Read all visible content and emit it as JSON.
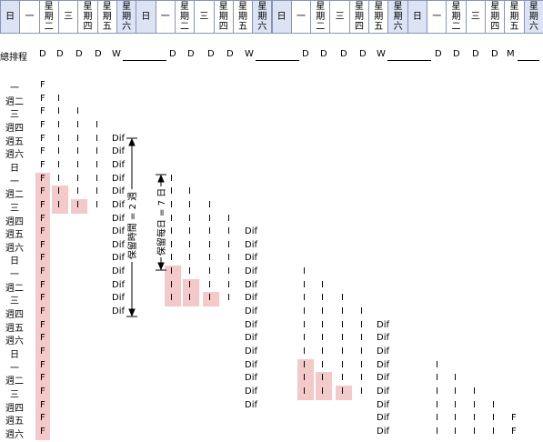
{
  "header": {
    "days": [
      "日",
      "一",
      "星期二",
      "三",
      "星期四",
      "星期五",
      "星期六",
      "日",
      "一",
      "星期二",
      "三",
      "星期四",
      "星期五",
      "星期六",
      "日",
      "一",
      "星期二",
      "三",
      "星期四",
      "星期五",
      "星期六",
      "日",
      "一",
      "星期二",
      "三",
      "星期四",
      "星期五",
      "星期六"
    ]
  },
  "schedule": {
    "label": "總排程",
    "items": [
      "D",
      "D",
      "D",
      "D",
      "W",
      "D",
      "D",
      "D",
      "D",
      "W",
      "D",
      "D",
      "D",
      "D",
      "W",
      "D",
      "D",
      "D",
      "D",
      "M"
    ]
  },
  "annotations": [
    "保留時間 = 2 週",
    "保留每日 = 7 日"
  ],
  "rows": [
    {
      "label": "一",
      "cells": [
        "F",
        null,
        null,
        null,
        null,
        null,
        null,
        null,
        null,
        null,
        null,
        null,
        null,
        null,
        null,
        null,
        null,
        null,
        null,
        null
      ]
    },
    {
      "label": "週二",
      "cells": [
        "F",
        "I",
        null,
        null,
        null,
        null,
        null,
        null,
        null,
        null,
        null,
        null,
        null,
        null,
        null,
        null,
        null,
        null,
        null,
        null
      ]
    },
    {
      "label": "三",
      "cells": [
        "F",
        "I",
        "I",
        null,
        null,
        null,
        null,
        null,
        null,
        null,
        null,
        null,
        null,
        null,
        null,
        null,
        null,
        null,
        null,
        null
      ]
    },
    {
      "label": "週四",
      "cells": [
        "F",
        "I",
        "I",
        "I",
        null,
        null,
        null,
        null,
        null,
        null,
        null,
        null,
        null,
        null,
        null,
        null,
        null,
        null,
        null,
        null
      ]
    },
    {
      "label": "週五",
      "cells": [
        "F",
        "I",
        "I",
        "I",
        "Dif",
        null,
        null,
        null,
        null,
        null,
        null,
        null,
        null,
        null,
        null,
        null,
        null,
        null,
        null,
        null
      ]
    },
    {
      "label": "週六",
      "cells": [
        "F",
        "I",
        "I",
        "I",
        "Dif",
        null,
        null,
        null,
        null,
        null,
        null,
        null,
        null,
        null,
        null,
        null,
        null,
        null,
        null,
        null
      ]
    },
    {
      "label": "日",
      "cells": [
        "F",
        "I",
        "I",
        "I",
        "Dif",
        null,
        null,
        null,
        null,
        null,
        null,
        null,
        null,
        null,
        null,
        null,
        null,
        null,
        null,
        null
      ]
    },
    {
      "label": "一",
      "cells": [
        "F",
        "I",
        "I",
        "I",
        "Dif",
        "I",
        null,
        null,
        null,
        null,
        null,
        null,
        null,
        null,
        null,
        null,
        null,
        null,
        null,
        null
      ]
    },
    {
      "label": "週二",
      "cells": [
        "F",
        "I",
        "I",
        "I",
        "Dif",
        "I",
        "I",
        null,
        null,
        null,
        null,
        null,
        null,
        null,
        null,
        null,
        null,
        null,
        null,
        null
      ]
    },
    {
      "label": "三",
      "cells": [
        "F",
        "I",
        "I",
        "I",
        "Dif",
        "I",
        "I",
        "I",
        null,
        null,
        null,
        null,
        null,
        null,
        null,
        null,
        null,
        null,
        null,
        null
      ]
    },
    {
      "label": "週四",
      "cells": [
        "F",
        null,
        null,
        null,
        "Dif",
        "I",
        "I",
        "I",
        "I",
        null,
        null,
        null,
        null,
        null,
        null,
        null,
        null,
        null,
        null,
        null
      ]
    },
    {
      "label": "週五",
      "cells": [
        "F",
        null,
        null,
        null,
        "Dif",
        "I",
        "I",
        "I",
        "I",
        "Dif",
        null,
        null,
        null,
        null,
        null,
        null,
        null,
        null,
        null,
        null
      ]
    },
    {
      "label": "週六",
      "cells": [
        "F",
        null,
        null,
        null,
        "Dif",
        "I",
        "I",
        "I",
        "I",
        "Dif",
        null,
        null,
        null,
        null,
        null,
        null,
        null,
        null,
        null,
        null
      ]
    },
    {
      "label": "日",
      "cells": [
        "F",
        null,
        null,
        null,
        "Dif",
        "I",
        "I",
        "I",
        "I",
        "Dif",
        null,
        null,
        null,
        null,
        null,
        null,
        null,
        null,
        null,
        null
      ]
    },
    {
      "label": "一",
      "cells": [
        "F",
        null,
        null,
        null,
        "Dif",
        "I",
        "I",
        "I",
        "I",
        "Dif",
        "I",
        null,
        null,
        null,
        null,
        null,
        null,
        null,
        null,
        null
      ]
    },
    {
      "label": "週二",
      "cells": [
        "F",
        null,
        null,
        null,
        "Dif",
        "I",
        "I",
        "I",
        "I",
        "Dif",
        "I",
        "I",
        null,
        null,
        null,
        null,
        null,
        null,
        null,
        null
      ]
    },
    {
      "label": "三",
      "cells": [
        "F",
        null,
        null,
        null,
        "Dif",
        "I",
        "I",
        "I",
        "I",
        "Dif",
        "I",
        "I",
        "I",
        null,
        null,
        null,
        null,
        null,
        null,
        null
      ]
    },
    {
      "label": "週四",
      "cells": [
        "F",
        null,
        null,
        null,
        "Dif",
        null,
        null,
        null,
        null,
        "Dif",
        "I",
        "I",
        "I",
        "I",
        null,
        null,
        null,
        null,
        null,
        null
      ]
    },
    {
      "label": "週五",
      "cells": [
        "F",
        null,
        null,
        null,
        null,
        null,
        null,
        null,
        null,
        "Dif",
        "I",
        "I",
        "I",
        "I",
        "Dif",
        null,
        null,
        null,
        null,
        null
      ]
    },
    {
      "label": "週六",
      "cells": [
        "F",
        null,
        null,
        null,
        null,
        null,
        null,
        null,
        null,
        "Dif",
        "I",
        "I",
        "I",
        "I",
        "Dif",
        null,
        null,
        null,
        null,
        null
      ]
    },
    {
      "label": "日",
      "cells": [
        "F",
        null,
        null,
        null,
        null,
        null,
        null,
        null,
        null,
        "Dif",
        "I",
        "I",
        "I",
        "I",
        "Dif",
        null,
        null,
        null,
        null,
        null
      ]
    },
    {
      "label": "一",
      "cells": [
        "F",
        null,
        null,
        null,
        null,
        null,
        null,
        null,
        null,
        "Dif",
        "I",
        "I",
        "I",
        "I",
        "Dif",
        "I",
        null,
        null,
        null,
        null
      ]
    },
    {
      "label": "週二",
      "cells": [
        "F",
        null,
        null,
        null,
        null,
        null,
        null,
        null,
        null,
        "Dif",
        "I",
        "I",
        "I",
        "I",
        "Dif",
        "I",
        "I",
        null,
        null,
        null
      ]
    },
    {
      "label": "三",
      "cells": [
        "F",
        null,
        null,
        null,
        null,
        null,
        null,
        null,
        null,
        "Dif",
        "I",
        "I",
        "I",
        "I",
        "Dif",
        "I",
        "I",
        "I",
        null,
        null
      ]
    },
    {
      "label": "週四",
      "cells": [
        "F",
        null,
        null,
        null,
        null,
        null,
        null,
        null,
        null,
        "Dif",
        null,
        null,
        null,
        null,
        "Dif",
        "I",
        "I",
        "I",
        "I",
        null
      ]
    },
    {
      "label": "週五",
      "cells": [
        "F",
        null,
        null,
        null,
        null,
        null,
        null,
        null,
        null,
        null,
        null,
        null,
        null,
        null,
        "Dif",
        "I",
        "I",
        "I",
        "I",
        "F"
      ]
    },
    {
      "label": "週六",
      "cells": [
        "F",
        null,
        null,
        null,
        null,
        null,
        null,
        null,
        null,
        null,
        null,
        null,
        null,
        null,
        "Dif",
        "I",
        "I",
        "I",
        "I",
        "F"
      ]
    }
  ]
}
